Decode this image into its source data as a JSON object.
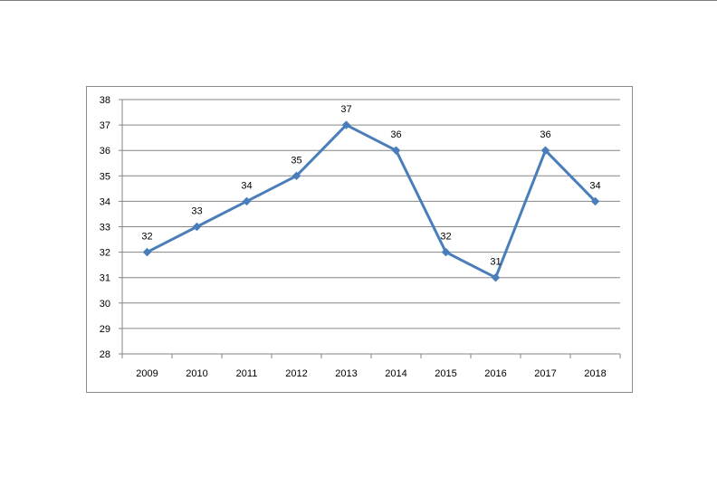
{
  "chart_data": {
    "type": "line",
    "categories": [
      "2009",
      "2010",
      "2011",
      "2012",
      "2013",
      "2014",
      "2015",
      "2016",
      "2017",
      "2018"
    ],
    "series": [
      {
        "values": [
          32,
          33,
          34,
          35,
          37,
          36,
          32,
          31,
          36,
          34
        ],
        "color": "#4a7ebb"
      }
    ],
    "title": "",
    "xlabel": "",
    "ylabel": "",
    "ylim": [
      28,
      38
    ],
    "yticks": [
      "28",
      "29",
      "30",
      "31",
      "32",
      "33",
      "34",
      "35",
      "36",
      "37",
      "38"
    ],
    "data_labels": [
      "32",
      "33",
      "34",
      "35",
      "37",
      "36",
      "32",
      "31",
      "36",
      "34"
    ],
    "grid": true,
    "legend": "none",
    "marker": "diamond",
    "colors": {
      "gridline": "#868686",
      "axis": "#868686",
      "frame": "#8c8c8c"
    }
  }
}
